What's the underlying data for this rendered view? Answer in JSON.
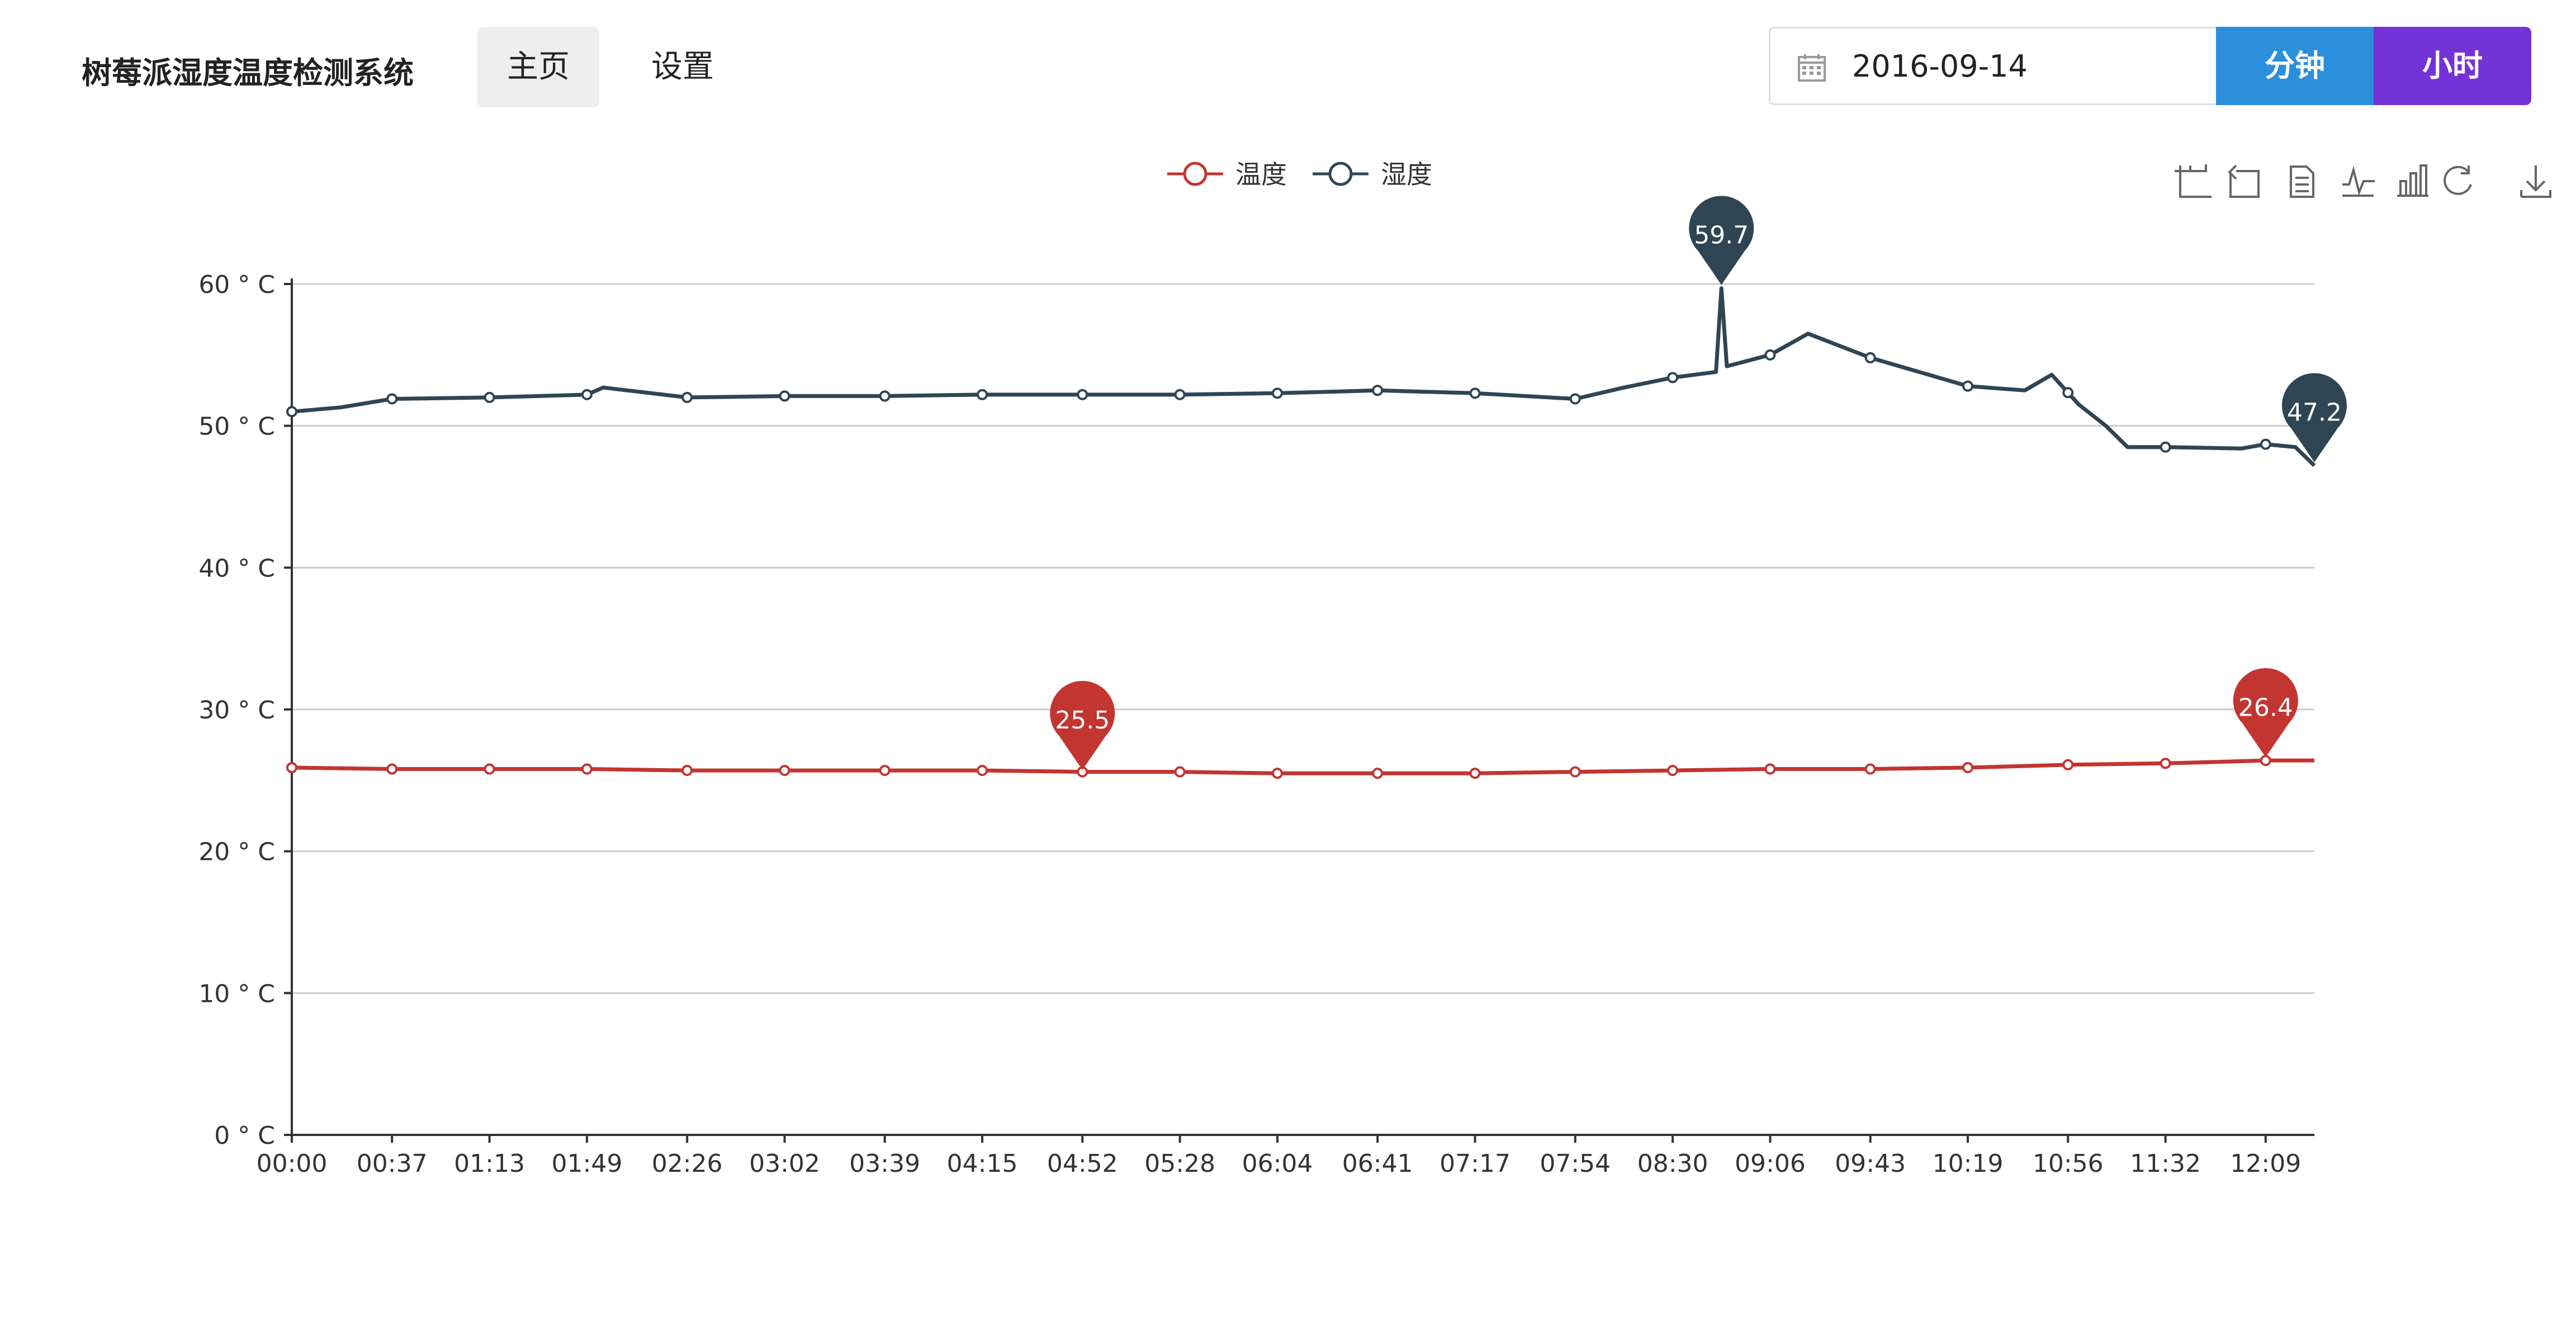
{
  "navbar": {
    "brand": "树莓派湿度温度检测系统",
    "items": [
      {
        "label": "主页",
        "active": true
      },
      {
        "label": "设置",
        "active": false
      }
    ]
  },
  "date_picker": {
    "value": "2016-09-14",
    "icon": "calendar-icon"
  },
  "buttons": {
    "minute": "分钟",
    "hour": "小时"
  },
  "colors": {
    "temperature": "#c23531",
    "humidity": "#2f4554",
    "minute_button": "#2c8fdb",
    "hour_button": "#7433d6"
  },
  "toolbox": {
    "icons": [
      "data-zoom-icon",
      "zoom-reset-icon",
      "data-view-icon",
      "line-chart-icon",
      "bar-chart-icon",
      "restore-icon",
      "save-image-icon"
    ]
  },
  "chart_data": {
    "type": "line",
    "legend": [
      "温度",
      "湿度"
    ],
    "legend_position": "top-center",
    "grid": true,
    "y_tick_labels": [
      "0 ° C",
      "10 ° C",
      "20 ° C",
      "30 ° C",
      "40 ° C",
      "50 ° C",
      "60 ° C"
    ],
    "ylim": [
      0,
      60
    ],
    "x_tick_labels": [
      "00:00",
      "00:37",
      "01:13",
      "01:49",
      "02:26",
      "03:02",
      "03:39",
      "04:15",
      "04:52",
      "05:28",
      "06:04",
      "06:41",
      "07:17",
      "07:54",
      "08:30",
      "09:06",
      "09:43",
      "10:19",
      "10:56",
      "11:32",
      "12:09"
    ],
    "series": [
      {
        "name": "温度",
        "points": [
          [
            "00:00",
            25.9
          ],
          [
            "00:37",
            25.8
          ],
          [
            "01:13",
            25.8
          ],
          [
            "01:49",
            25.8
          ],
          [
            "02:26",
            25.7
          ],
          [
            "03:02",
            25.7
          ],
          [
            "03:39",
            25.7
          ],
          [
            "04:15",
            25.7
          ],
          [
            "04:52",
            25.6
          ],
          [
            "05:28",
            25.6
          ],
          [
            "06:04",
            25.5
          ],
          [
            "06:41",
            25.5
          ],
          [
            "07:17",
            25.5
          ],
          [
            "07:54",
            25.6
          ],
          [
            "08:30",
            25.7
          ],
          [
            "09:06",
            25.8
          ],
          [
            "09:43",
            25.8
          ],
          [
            "10:19",
            25.9
          ],
          [
            "10:56",
            26.1
          ],
          [
            "11:32",
            26.2
          ],
          [
            "12:09",
            26.4
          ],
          [
            "12:27",
            26.4
          ]
        ],
        "markers": [
          {
            "value": "25.5",
            "at": "04:52"
          },
          {
            "value": "26.4",
            "at": "12:09"
          }
        ]
      },
      {
        "name": "湿度",
        "points": [
          [
            "00:00",
            51.0
          ],
          [
            "00:18",
            51.3
          ],
          [
            "00:37",
            51.9
          ],
          [
            "01:13",
            52.0
          ],
          [
            "01:49",
            52.2
          ],
          [
            "01:55",
            52.7
          ],
          [
            "02:26",
            52.0
          ],
          [
            "03:02",
            52.1
          ],
          [
            "03:39",
            52.1
          ],
          [
            "04:15",
            52.2
          ],
          [
            "04:52",
            52.2
          ],
          [
            "05:28",
            52.2
          ],
          [
            "06:04",
            52.3
          ],
          [
            "06:41",
            52.5
          ],
          [
            "07:17",
            52.3
          ],
          [
            "07:54",
            51.9
          ],
          [
            "08:12",
            52.7
          ],
          [
            "08:30",
            53.4
          ],
          [
            "08:46",
            53.8
          ],
          [
            "08:48",
            59.7
          ],
          [
            "08:50",
            54.2
          ],
          [
            "09:06",
            55.0
          ],
          [
            "09:20",
            56.5
          ],
          [
            "09:43",
            54.8
          ],
          [
            "10:19",
            52.8
          ],
          [
            "10:40",
            52.5
          ],
          [
            "10:50",
            53.6
          ],
          [
            "11:00",
            51.5
          ],
          [
            "11:10",
            50.0
          ],
          [
            "11:18",
            48.5
          ],
          [
            "11:32",
            48.5
          ],
          [
            "12:00",
            48.4
          ],
          [
            "12:09",
            48.7
          ],
          [
            "12:20",
            48.5
          ],
          [
            "12:27",
            47.2
          ]
        ],
        "markers": [
          {
            "value": "59.7",
            "at": "08:48"
          },
          {
            "value": "47.2",
            "at": "12:27"
          }
        ]
      }
    ]
  }
}
